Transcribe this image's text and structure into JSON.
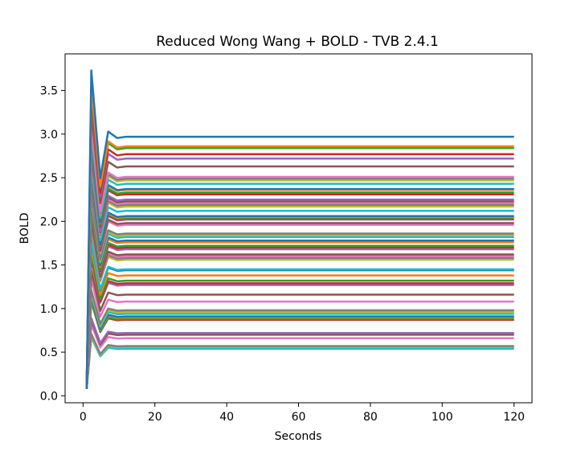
{
  "chart_data": {
    "type": "line",
    "title": "Reduced Wong Wang + BOLD - TVB 2.4.1",
    "xlabel": "Seconds",
    "ylabel": "BOLD",
    "xlim": [
      -5.0,
      125.0
    ],
    "ylim": [
      -0.08,
      3.92
    ],
    "xticks": [
      0,
      20,
      40,
      60,
      80,
      100,
      120
    ],
    "yticks": [
      0.0,
      0.5,
      1.0,
      1.5,
      2.0,
      2.5,
      3.0,
      3.5
    ],
    "xtick_labels": [
      "0",
      "20",
      "40",
      "60",
      "80",
      "100",
      "120"
    ],
    "ytick_labels": [
      "0.0",
      "0.5",
      "1.0",
      "1.5",
      "2.0",
      "2.5",
      "3.0",
      "3.5"
    ],
    "grid": false,
    "legend": "none",
    "x_start": 1.0,
    "x_end": 120.0,
    "initial_value": 0.08,
    "color_cycle": [
      "#1f77b4",
      "#ff7f0e",
      "#2ca02c",
      "#d62728",
      "#9467bd",
      "#8c564b",
      "#e377c2",
      "#7f7f7f",
      "#bcbd22",
      "#17becf"
    ],
    "series_steady_values": [
      2.97,
      2.86,
      2.84,
      2.77,
      2.72,
      2.63,
      2.51,
      2.49,
      2.47,
      2.43,
      2.37,
      2.36,
      2.33,
      2.31,
      2.25,
      2.23,
      2.21,
      2.19,
      2.17,
      2.12,
      2.06,
      2.05,
      2.04,
      2.03,
      2.02,
      1.98,
      1.96,
      1.86,
      1.84,
      1.82,
      1.78,
      1.76,
      1.72,
      1.7,
      1.68,
      1.62,
      1.6,
      1.58,
      1.56,
      1.45,
      1.44,
      1.38,
      1.32,
      1.29,
      1.27,
      1.16,
      1.08,
      0.98,
      0.96,
      0.94,
      0.91,
      0.9,
      0.88,
      0.87,
      0.72,
      0.7,
      0.66,
      0.57,
      0.56,
      0.54
    ],
    "series_peak_values": [
      3.73,
      3.55,
      3.52,
      3.44,
      3.38,
      3.27,
      3.12,
      3.09,
      3.07,
      3.02,
      2.94,
      2.93,
      2.89,
      2.87,
      2.79,
      2.77,
      2.74,
      2.72,
      2.69,
      2.63,
      2.56,
      2.54,
      2.53,
      2.52,
      2.51,
      2.46,
      2.43,
      2.31,
      2.28,
      2.26,
      2.21,
      2.18,
      2.13,
      2.11,
      2.08,
      2.01,
      1.98,
      1.96,
      1.93,
      1.8,
      1.78,
      1.71,
      1.64,
      1.6,
      1.57,
      1.44,
      1.34,
      1.21,
      1.19,
      1.16,
      1.13,
      1.12,
      1.09,
      1.08,
      0.89,
      0.87,
      0.82,
      0.71,
      0.69,
      0.67
    ]
  }
}
